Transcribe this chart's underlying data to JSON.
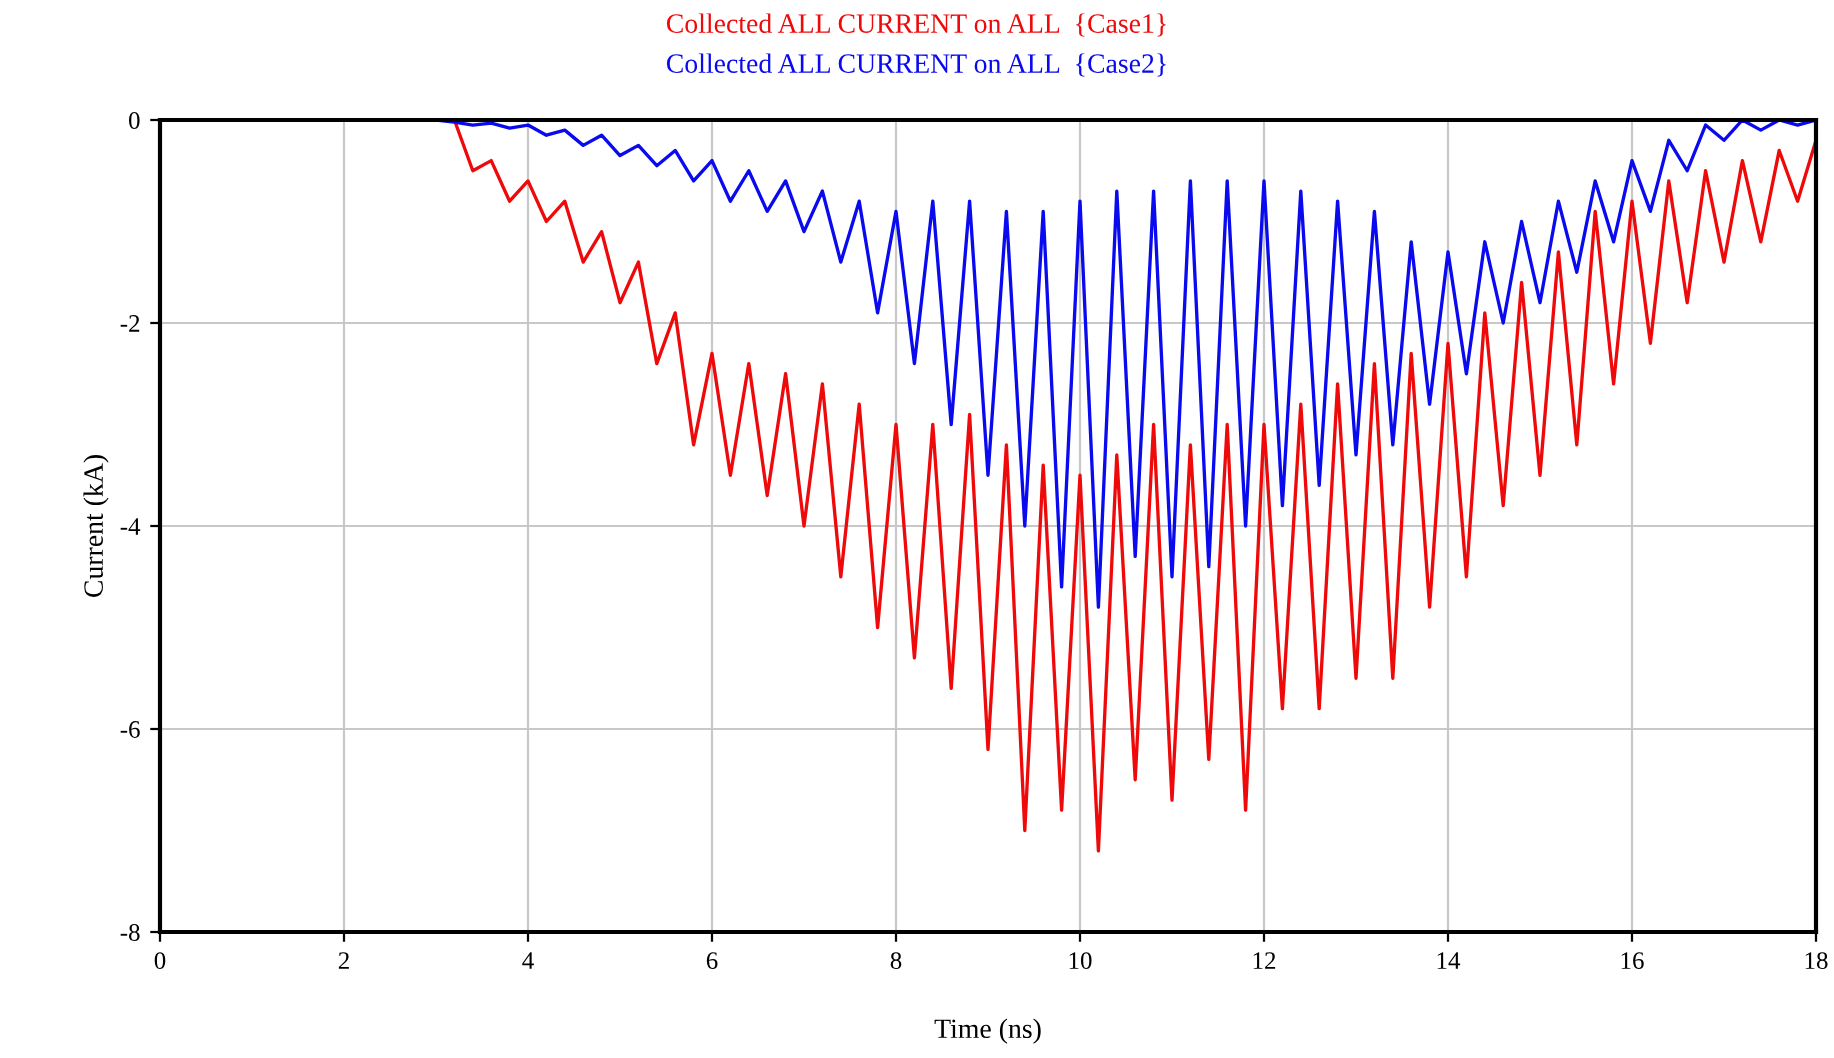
{
  "chart_data": {
    "type": "line",
    "xlabel": "Time (ns)",
    "ylabel": "Current (kA)",
    "xlim": [
      0,
      18
    ],
    "ylim": [
      -8,
      0
    ],
    "xticks": [
      0,
      2,
      4,
      6,
      8,
      10,
      12,
      14,
      16,
      18
    ],
    "yticks": [
      -8,
      -6,
      -4,
      -2,
      0
    ],
    "grid": true,
    "legend": "top",
    "series": [
      {
        "name": "Collected ALL CURRENT on ALL  {Case1}",
        "color": "#ee0a0a",
        "x": [
          0,
          3.2,
          3.4,
          3.6,
          3.8,
          4.0,
          4.2,
          4.4,
          4.6,
          4.8,
          5.0,
          5.2,
          5.4,
          5.6,
          5.8,
          6.0,
          6.2,
          6.4,
          6.6,
          6.8,
          7.0,
          7.2,
          7.4,
          7.6,
          7.8,
          8.0,
          8.2,
          8.4,
          8.6,
          8.8,
          9.0,
          9.2,
          9.4,
          9.6,
          9.8,
          10.0,
          10.2,
          10.4,
          10.6,
          10.8,
          11.0,
          11.2,
          11.4,
          11.6,
          11.8,
          12.0,
          12.2,
          12.4,
          12.6,
          12.8,
          13.0,
          13.2,
          13.4,
          13.6,
          13.8,
          14.0,
          14.2,
          14.4,
          14.6,
          14.8,
          15.0,
          15.2,
          15.4,
          15.6,
          15.8,
          16.0,
          16.2,
          16.4,
          16.6,
          16.8,
          17.0,
          17.2,
          17.4,
          17.6,
          17.8,
          18.0
        ],
        "values": [
          0,
          0,
          -0.5,
          -0.4,
          -0.8,
          -0.6,
          -1.0,
          -0.8,
          -1.4,
          -1.1,
          -1.8,
          -1.4,
          -2.4,
          -1.9,
          -3.2,
          -2.3,
          -3.5,
          -2.4,
          -3.7,
          -2.5,
          -4.0,
          -2.6,
          -4.5,
          -2.8,
          -5.0,
          -3.0,
          -5.3,
          -3.0,
          -5.6,
          -2.9,
          -6.2,
          -3.2,
          -7.0,
          -3.4,
          -6.8,
          -3.5,
          -7.2,
          -3.3,
          -6.5,
          -3.0,
          -6.7,
          -3.2,
          -6.3,
          -3.0,
          -6.8,
          -3.0,
          -5.8,
          -2.8,
          -5.8,
          -2.6,
          -5.5,
          -2.4,
          -5.5,
          -2.3,
          -4.8,
          -2.2,
          -4.5,
          -1.9,
          -3.8,
          -1.6,
          -3.5,
          -1.3,
          -3.2,
          -0.9,
          -2.6,
          -0.8,
          -2.2,
          -0.6,
          -1.8,
          -0.5,
          -1.4,
          -0.4,
          -1.2,
          -0.3,
          -0.8,
          -0.2
        ]
      },
      {
        "name": "Collected ALL CURRENT on ALL  {Case2}",
        "color": "#0a0aee",
        "x": [
          0,
          3.0,
          3.2,
          3.4,
          3.6,
          3.8,
          4.0,
          4.2,
          4.4,
          4.6,
          4.8,
          5.0,
          5.2,
          5.4,
          5.6,
          5.8,
          6.0,
          6.2,
          6.4,
          6.6,
          6.8,
          7.0,
          7.2,
          7.4,
          7.6,
          7.8,
          8.0,
          8.2,
          8.4,
          8.6,
          8.8,
          9.0,
          9.2,
          9.4,
          9.6,
          9.8,
          10.0,
          10.2,
          10.4,
          10.6,
          10.8,
          11.0,
          11.2,
          11.4,
          11.6,
          11.8,
          12.0,
          12.2,
          12.4,
          12.6,
          12.8,
          13.0,
          13.2,
          13.4,
          13.6,
          13.8,
          14.0,
          14.2,
          14.4,
          14.6,
          14.8,
          15.0,
          15.2,
          15.4,
          15.6,
          15.8,
          16.0,
          16.2,
          16.4,
          16.6,
          16.8,
          17.0,
          17.2,
          17.4,
          17.6,
          17.8,
          18.0
        ],
        "values": [
          0,
          0,
          -0.02,
          -0.05,
          -0.03,
          -0.08,
          -0.05,
          -0.15,
          -0.1,
          -0.25,
          -0.15,
          -0.35,
          -0.25,
          -0.45,
          -0.3,
          -0.6,
          -0.4,
          -0.8,
          -0.5,
          -0.9,
          -0.6,
          -1.1,
          -0.7,
          -1.4,
          -0.8,
          -1.9,
          -0.9,
          -2.4,
          -0.8,
          -3.0,
          -0.8,
          -3.5,
          -0.9,
          -4.0,
          -0.9,
          -4.6,
          -0.8,
          -4.8,
          -0.7,
          -4.3,
          -0.7,
          -4.5,
          -0.6,
          -4.4,
          -0.6,
          -4.0,
          -0.6,
          -3.8,
          -0.7,
          -3.6,
          -0.8,
          -3.3,
          -0.9,
          -3.2,
          -1.2,
          -2.8,
          -1.3,
          -2.5,
          -1.2,
          -2.0,
          -1.0,
          -1.8,
          -0.8,
          -1.5,
          -0.6,
          -1.2,
          -0.4,
          -0.9,
          -0.2,
          -0.5,
          -0.05,
          -0.2,
          0,
          -0.1,
          0,
          -0.05,
          0
        ]
      }
    ]
  }
}
